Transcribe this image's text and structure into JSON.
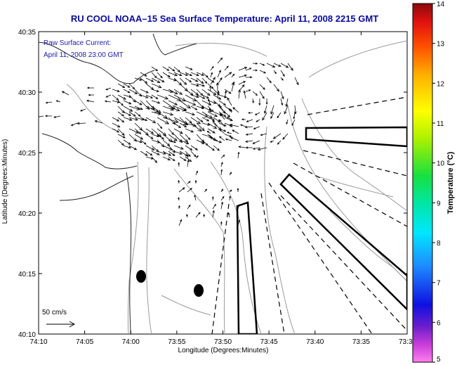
{
  "title": "RU COOL  NOAA–15  Sea Surface Temperature:  April 11, 2008 2215 GMT",
  "annotation": {
    "line1": "Raw Surface Current:",
    "line2": "April 11, 2008 23:00 GMT"
  },
  "x_axis": {
    "label": "Longitude (Degrees:Minutes)",
    "ticks": [
      "74:10",
      "74:05",
      "74:00",
      "73:55",
      "73:50",
      "73:45",
      "73:40",
      "73:35",
      "73:3"
    ]
  },
  "y_axis": {
    "label": "Latitude (Degrees:Minutes)",
    "ticks": [
      "40:35",
      "40:30",
      "40:25",
      "40:20",
      "40:15",
      "40:10"
    ]
  },
  "colorbar": {
    "label": "Temperature (°C)",
    "ticks": [
      "14",
      "13",
      "12",
      "11",
      "10",
      "9",
      "8",
      "7",
      "6",
      "5"
    ]
  },
  "scale_label": "50 cm/s",
  "colors": {
    "title": "#0a0aa0",
    "vectors": "#000000",
    "bathymetry": "#9a9a9a",
    "coastline": "#222222"
  }
}
